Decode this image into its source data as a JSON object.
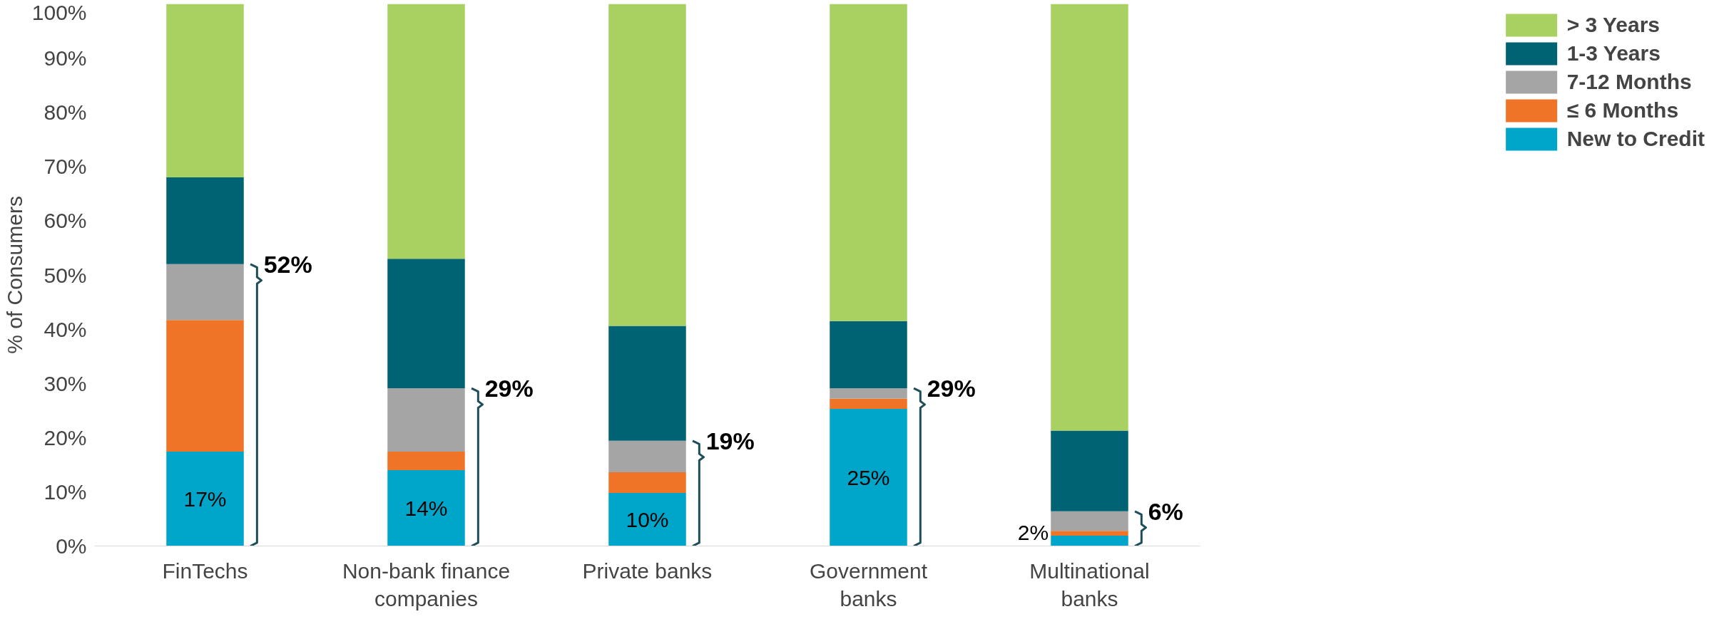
{
  "chart_data": {
    "type": "bar",
    "stacked": true,
    "ylabel": "% of Consumers",
    "categories": [
      "FinTechs",
      "Non-bank finance companies",
      "Private banks",
      "Government banks",
      "Multinational banks"
    ],
    "series": [
      {
        "name": "New to Credit",
        "color": "#00a6c9",
        "values": [
          17.4,
          14.0,
          9.8,
          25.3,
          1.9
        ],
        "value_labels": [
          "17%",
          "14%",
          "10%",
          "25%",
          "2%"
        ]
      },
      {
        "name": "≤ 6 Months",
        "color": "#f07427",
        "values": [
          24.3,
          3.4,
          3.8,
          1.9,
          0.9
        ]
      },
      {
        "name": "7-12 Months",
        "color": "#a5a5a5",
        "values": [
          10.3,
          11.7,
          5.8,
          1.9,
          3.6
        ]
      },
      {
        "name": "1-3 Years",
        "color": "#006374",
        "values": [
          16.0,
          23.9,
          21.2,
          12.4,
          14.9
        ]
      },
      {
        "name": "> 3 Years",
        "color": "#a9d161",
        "values": [
          32.0,
          47.0,
          59.4,
          58.5,
          78.7
        ]
      }
    ],
    "ylim": [
      0,
      100
    ],
    "yticks": [
      {
        "value": 0,
        "label": "0%"
      },
      {
        "value": 10,
        "label": "10%"
      },
      {
        "value": 20,
        "label": "20%"
      },
      {
        "value": 30,
        "label": "30%"
      },
      {
        "value": 40,
        "label": "40%"
      },
      {
        "value": 50,
        "label": "50%"
      },
      {
        "value": 60,
        "label": "60%"
      },
      {
        "value": 70,
        "label": "70%"
      },
      {
        "value": 80,
        "label": "80%"
      },
      {
        "value": 90,
        "label": "90%"
      },
      {
        "value": 100,
        "label": "100%"
      }
    ],
    "annotations": [
      {
        "text": "52%",
        "x": "FinTechs",
        "y": 52
      },
      {
        "text": "29%",
        "x": "Non-bank finance companies",
        "y": 29.1
      },
      {
        "text": "19%",
        "x": "Private banks",
        "y": 19.4
      },
      {
        "text": "29%",
        "x": "Government banks",
        "y": 29.1
      },
      {
        "text": "6%",
        "x": "Multinational banks",
        "y": 6.4
      }
    ],
    "grid": false,
    "legend": "right"
  }
}
